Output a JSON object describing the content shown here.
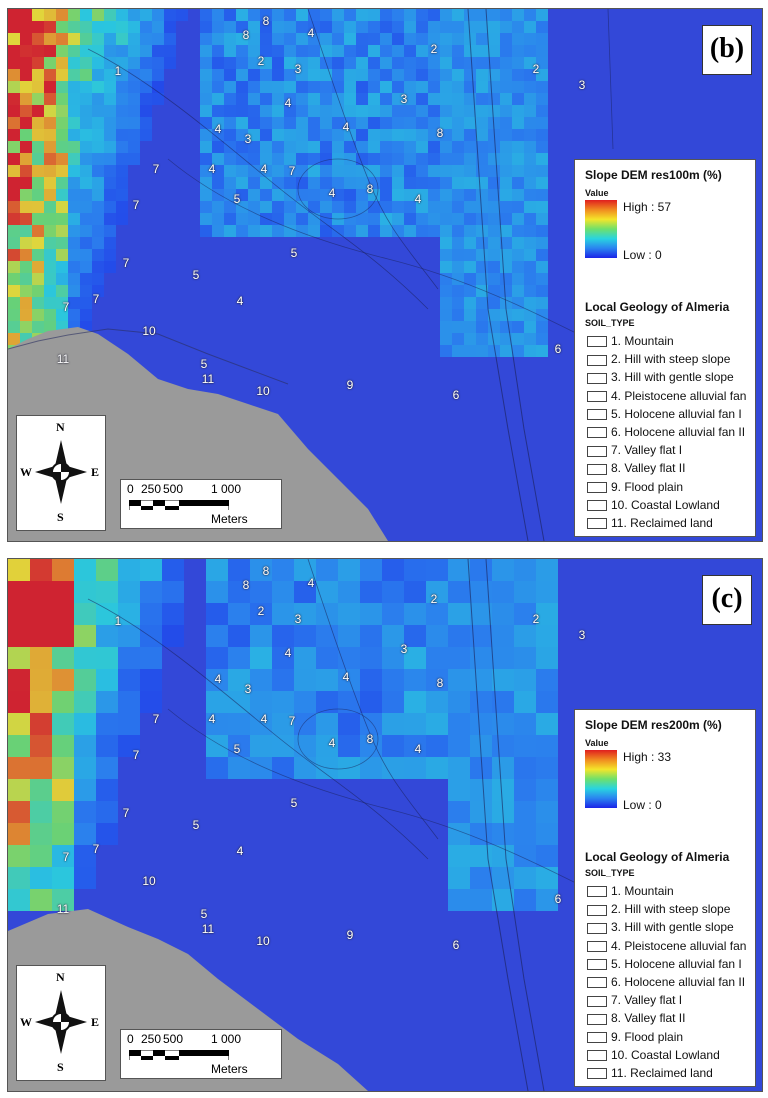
{
  "panels": [
    {
      "label": "(b)",
      "legend_title": "Slope DEM res100m (%)",
      "value_label": "Value",
      "high": "High : 57",
      "low": "Low : 0"
    },
    {
      "label": "(c)",
      "legend_title": "Slope DEM res200m (%)",
      "value_label": "Value",
      "high": "High : 33",
      "low": "Low : 0"
    }
  ],
  "geology": {
    "title": "Local Geology of Almeria",
    "field": "SOIL_TYPE",
    "items": [
      "1. Mountain",
      "2. Hill with steep slope",
      "3. Hill with gentle slope",
      "4. Pleistocene alluvial fan",
      "5. Holocene alluvial fan I",
      "6. Holocene alluvial fan II",
      "7. Valley flat I",
      "8. Valley flat II",
      "9. Flood plain",
      "10. Coastal Lowland",
      "11. Reclaimed land"
    ]
  },
  "map_numbers": [
    "1",
    "2",
    "2",
    "2",
    "3",
    "3",
    "3",
    "3",
    "4",
    "4",
    "4",
    "4",
    "4",
    "4",
    "4",
    "4",
    "4",
    "5",
    "5",
    "5",
    "5",
    "6",
    "6",
    "7",
    "7",
    "7",
    "7",
    "7",
    "7",
    "8",
    "8",
    "8",
    "8",
    "9",
    "10",
    "10",
    "11",
    "11"
  ],
  "compass": {
    "n": "N",
    "s": "S",
    "e": "E",
    "w": "W"
  },
  "scale": {
    "t0": "0",
    "t1": "250",
    "t2": "500",
    "t3": "1 000",
    "unit": "Meters"
  },
  "colors": {
    "low": "#1b24e8",
    "mid": "#29d4e0",
    "yellow": "#f4e52a",
    "high": "#e01f1f",
    "land": "#9a9a9a"
  }
}
